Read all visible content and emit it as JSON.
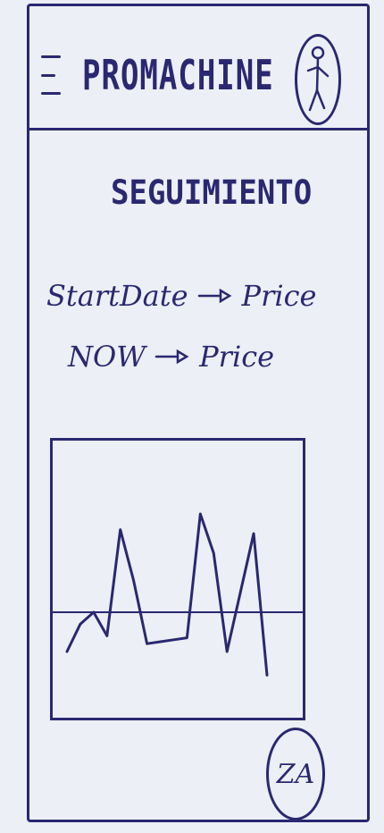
{
  "header": {
    "title": "PROMACHINE",
    "menu_icon": "hamburger-menu-icon",
    "profile_icon": "stick-figure-user-icon"
  },
  "main": {
    "section_title": "SEGUIMIENTO",
    "rows": [
      {
        "label": "StartDate",
        "arrow_icon": "right-arrow-icon",
        "value": "Price"
      },
      {
        "label": "NOW",
        "arrow_icon": "right-arrow-icon",
        "value": "Price"
      }
    ]
  },
  "chart_data": {
    "type": "line",
    "title": "",
    "xlabel": "",
    "ylabel": "",
    "x": [
      0,
      1,
      2,
      3,
      4,
      5,
      6,
      7,
      8,
      9,
      10,
      11,
      12,
      13,
      14,
      15
    ],
    "series": [
      {
        "values": [
          2.0,
          3.4,
          4.0,
          2.8,
          8.2,
          5.6,
          2.4,
          2.5,
          2.6,
          2.7,
          9.0,
          7.0,
          2.0,
          5.0,
          8.0,
          0.8
        ]
      }
    ],
    "reference_line": 4.0,
    "ylim": [
      0,
      10
    ]
  },
  "fab": {
    "label": "ZA"
  },
  "colors": {
    "ink": "#2a2870",
    "paper": "#eceff5"
  }
}
